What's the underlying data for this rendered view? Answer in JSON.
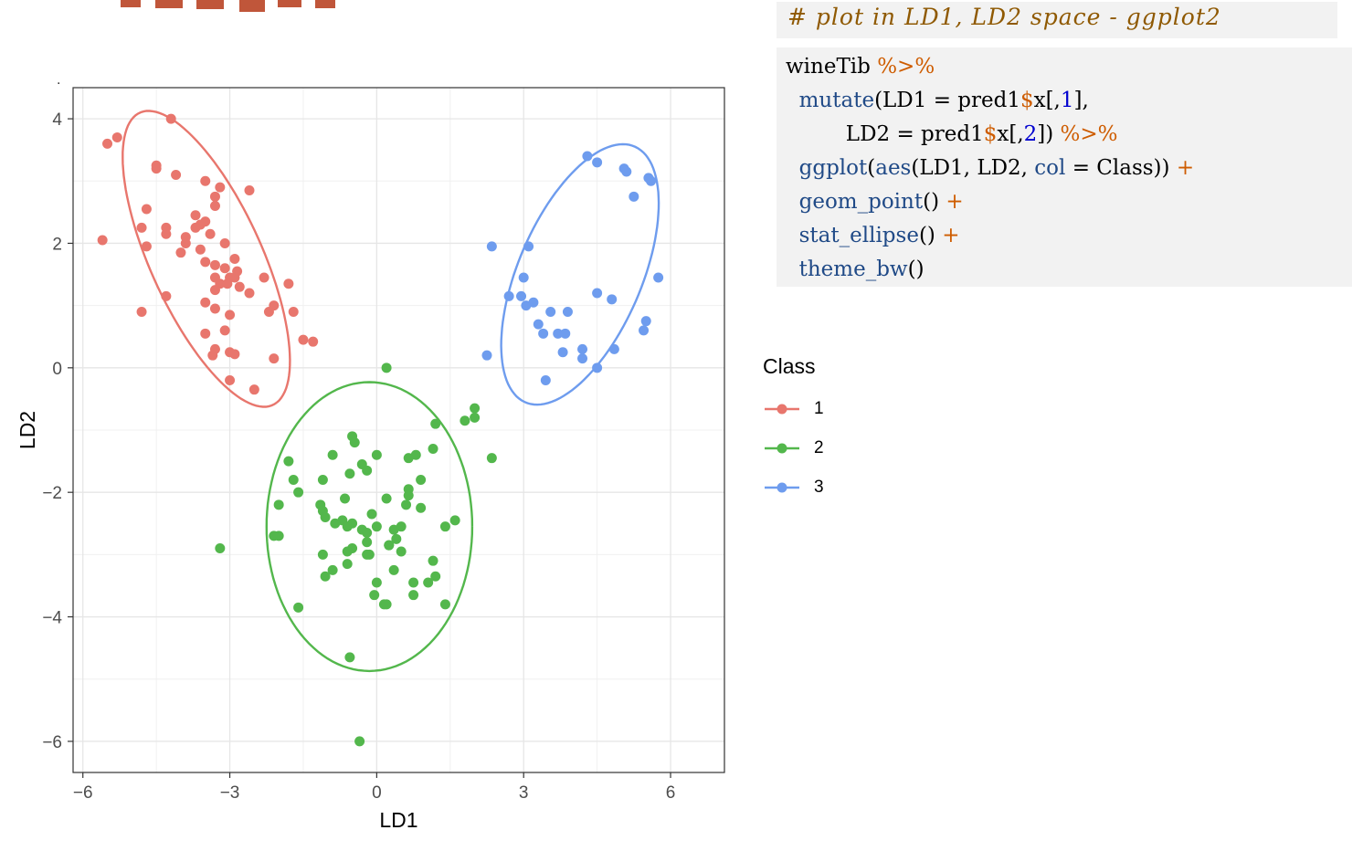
{
  "code": {
    "comment": "# plot in LD1, LD2 space - ggplot2",
    "lines": [
      [
        {
          "t": "wineTib ",
          "c": ""
        },
        {
          "t": "%>%",
          "c": "op"
        }
      ],
      [
        {
          "t": "  ",
          "c": ""
        },
        {
          "t": "mutate",
          "c": "fn"
        },
        {
          "t": "(LD1 = pred1",
          "c": ""
        },
        {
          "t": "$",
          "c": "op"
        },
        {
          "t": "x[,",
          "c": ""
        },
        {
          "t": "1",
          "c": "num"
        },
        {
          "t": "],",
          "c": ""
        }
      ],
      [
        {
          "t": "         LD2 = pred1",
          "c": ""
        },
        {
          "t": "$",
          "c": "op"
        },
        {
          "t": "x[,",
          "c": ""
        },
        {
          "t": "2",
          "c": "num"
        },
        {
          "t": "]) ",
          "c": ""
        },
        {
          "t": "%>%",
          "c": "op"
        }
      ],
      [
        {
          "t": "  ",
          "c": ""
        },
        {
          "t": "ggplot",
          "c": "fn"
        },
        {
          "t": "(",
          "c": ""
        },
        {
          "t": "aes",
          "c": "fn"
        },
        {
          "t": "(LD1, LD2, ",
          "c": ""
        },
        {
          "t": "col",
          "c": "fn"
        },
        {
          "t": " = Class)) ",
          "c": ""
        },
        {
          "t": "+",
          "c": "op"
        }
      ],
      [
        {
          "t": "  ",
          "c": ""
        },
        {
          "t": "geom_point",
          "c": "fn"
        },
        {
          "t": "() ",
          "c": ""
        },
        {
          "t": "+",
          "c": "op"
        }
      ],
      [
        {
          "t": "  ",
          "c": ""
        },
        {
          "t": "stat_ellipse",
          "c": "fn"
        },
        {
          "t": "() ",
          "c": ""
        },
        {
          "t": "+",
          "c": "op"
        }
      ],
      [
        {
          "t": "  ",
          "c": ""
        },
        {
          "t": "theme_bw",
          "c": "fn"
        },
        {
          "t": "()",
          "c": ""
        }
      ]
    ]
  },
  "chart_data": {
    "type": "scatter",
    "title": "",
    "xlabel": "LD1",
    "ylabel": "LD2",
    "xlim": [
      -6.2,
      7.1
    ],
    "ylim": [
      -6.5,
      4.5
    ],
    "xticks": [
      -6,
      -3,
      0,
      3,
      6
    ],
    "xtick_labels": [
      "−6",
      "−3",
      "0",
      "3",
      "6"
    ],
    "yticks": [
      -6,
      -4,
      -2,
      0,
      2,
      4
    ],
    "ytick_labels": [
      "−6",
      "−4",
      "−2",
      "0",
      "2",
      "4"
    ],
    "grid": true,
    "legend": {
      "title": "Class",
      "position": "right"
    },
    "series": [
      {
        "name": "1",
        "color": "#E8766D",
        "points": [
          [
            -4.2,
            4.0
          ],
          [
            -5.5,
            3.6
          ],
          [
            -5.3,
            3.7
          ],
          [
            -4.5,
            3.25
          ],
          [
            -4.5,
            3.2
          ],
          [
            -4.1,
            3.1
          ],
          [
            -3.5,
            3.0
          ],
          [
            -3.2,
            2.9
          ],
          [
            -3.3,
            2.75
          ],
          [
            -3.3,
            2.6
          ],
          [
            -2.6,
            2.85
          ],
          [
            -4.7,
            2.55
          ],
          [
            -3.7,
            2.45
          ],
          [
            -3.6,
            2.3
          ],
          [
            -3.5,
            2.35
          ],
          [
            -3.7,
            2.25
          ],
          [
            -4.3,
            2.25
          ],
          [
            -4.8,
            2.25
          ],
          [
            -3.4,
            2.15
          ],
          [
            -3.9,
            2.1
          ],
          [
            -4.3,
            2.15
          ],
          [
            -5.6,
            2.05
          ],
          [
            -3.1,
            2.0
          ],
          [
            -3.9,
            2.0
          ],
          [
            -4.7,
            1.95
          ],
          [
            -3.6,
            1.9
          ],
          [
            -4.0,
            1.85
          ],
          [
            -2.9,
            1.75
          ],
          [
            -3.5,
            1.7
          ],
          [
            -3.3,
            1.65
          ],
          [
            -3.1,
            1.6
          ],
          [
            -2.85,
            1.55
          ],
          [
            -3.0,
            1.45
          ],
          [
            -3.3,
            1.45
          ],
          [
            -2.9,
            1.45
          ],
          [
            -3.05,
            1.35
          ],
          [
            -2.3,
            1.45
          ],
          [
            -3.2,
            1.35
          ],
          [
            -1.8,
            1.35
          ],
          [
            -2.8,
            1.3
          ],
          [
            -3.3,
            1.25
          ],
          [
            -2.6,
            1.2
          ],
          [
            -4.3,
            1.15
          ],
          [
            -2.1,
            1.0
          ],
          [
            -2.2,
            0.9
          ],
          [
            -3.5,
            1.05
          ],
          [
            -3.3,
            0.95
          ],
          [
            -1.7,
            0.9
          ],
          [
            -4.8,
            0.9
          ],
          [
            -3.0,
            0.85
          ],
          [
            -3.1,
            0.6
          ],
          [
            -1.5,
            0.45
          ],
          [
            -3.5,
            0.55
          ],
          [
            -1.3,
            0.42
          ],
          [
            -3.3,
            0.3
          ],
          [
            -3.35,
            0.2
          ],
          [
            -3.0,
            0.25
          ],
          [
            -2.9,
            0.22
          ],
          [
            -2.1,
            0.15
          ],
          [
            -3.0,
            -0.2
          ],
          [
            -2.5,
            -0.35
          ]
        ]
      },
      {
        "name": "2",
        "color": "#53B74C",
        "points": [
          [
            0.2,
            0.0
          ],
          [
            2.0,
            -0.65
          ],
          [
            1.8,
            -0.85
          ],
          [
            2.0,
            -0.8
          ],
          [
            1.2,
            -0.9
          ],
          [
            -0.5,
            -1.1
          ],
          [
            -0.45,
            -1.2
          ],
          [
            1.15,
            -1.3
          ],
          [
            0.0,
            -1.4
          ],
          [
            -0.9,
            -1.4
          ],
          [
            0.8,
            -1.4
          ],
          [
            0.65,
            -1.45
          ],
          [
            2.35,
            -1.45
          ],
          [
            -1.8,
            -1.5
          ],
          [
            -0.3,
            -1.55
          ],
          [
            -0.55,
            -1.7
          ],
          [
            -1.7,
            -1.8
          ],
          [
            -1.1,
            -1.8
          ],
          [
            0.9,
            -1.8
          ],
          [
            -0.2,
            -1.65
          ],
          [
            0.65,
            -1.95
          ],
          [
            -1.6,
            -2.0
          ],
          [
            -0.65,
            -2.1
          ],
          [
            0.2,
            -2.1
          ],
          [
            0.65,
            -2.05
          ],
          [
            -2.0,
            -2.2
          ],
          [
            -1.15,
            -2.2
          ],
          [
            0.6,
            -2.2
          ],
          [
            0.9,
            -2.25
          ],
          [
            -1.1,
            -2.3
          ],
          [
            -0.1,
            -2.35
          ],
          [
            -1.05,
            -2.4
          ],
          [
            1.6,
            -2.45
          ],
          [
            -0.5,
            -2.5
          ],
          [
            -0.7,
            -2.45
          ],
          [
            -0.85,
            -2.5
          ],
          [
            -0.6,
            -2.55
          ],
          [
            1.4,
            -2.55
          ],
          [
            0.0,
            -2.55
          ],
          [
            -0.3,
            -2.6
          ],
          [
            0.35,
            -2.6
          ],
          [
            0.5,
            -2.55
          ],
          [
            -0.2,
            -2.65
          ],
          [
            -2.0,
            -2.7
          ],
          [
            -2.1,
            -2.7
          ],
          [
            0.4,
            -2.75
          ],
          [
            -0.2,
            -2.8
          ],
          [
            0.25,
            -2.85
          ],
          [
            -0.5,
            -2.9
          ],
          [
            0.25,
            -2.85
          ],
          [
            -0.6,
            -2.95
          ],
          [
            0.5,
            -2.95
          ],
          [
            -1.1,
            -3.0
          ],
          [
            -0.15,
            -3.0
          ],
          [
            -0.2,
            -3.0
          ],
          [
            -3.2,
            -2.9
          ],
          [
            -0.6,
            -3.15
          ],
          [
            -0.9,
            -3.25
          ],
          [
            1.15,
            -3.1
          ],
          [
            0.35,
            -3.25
          ],
          [
            -1.05,
            -3.35
          ],
          [
            1.2,
            -3.35
          ],
          [
            1.05,
            -3.45
          ],
          [
            0.0,
            -3.45
          ],
          [
            0.75,
            -3.45
          ],
          [
            0.75,
            -3.65
          ],
          [
            -0.05,
            -3.65
          ],
          [
            0.15,
            -3.8
          ],
          [
            0.2,
            -3.8
          ],
          [
            1.4,
            -3.8
          ],
          [
            -1.6,
            -3.85
          ],
          [
            -0.55,
            -4.65
          ],
          [
            -0.35,
            -6.0
          ]
        ]
      },
      {
        "name": "3",
        "color": "#6E9CEE",
        "points": [
          [
            4.3,
            3.4
          ],
          [
            4.5,
            3.3
          ],
          [
            5.05,
            3.2
          ],
          [
            5.1,
            3.15
          ],
          [
            5.55,
            3.05
          ],
          [
            5.6,
            3.0
          ],
          [
            5.25,
            2.75
          ],
          [
            2.35,
            1.95
          ],
          [
            3.1,
            1.95
          ],
          [
            3.0,
            1.45
          ],
          [
            5.75,
            1.45
          ],
          [
            2.7,
            1.15
          ],
          [
            2.95,
            1.15
          ],
          [
            4.5,
            1.2
          ],
          [
            3.2,
            1.05
          ],
          [
            4.8,
            1.1
          ],
          [
            3.05,
            1.0
          ],
          [
            3.55,
            0.9
          ],
          [
            3.9,
            0.9
          ],
          [
            5.5,
            0.75
          ],
          [
            3.3,
            0.7
          ],
          [
            3.7,
            0.55
          ],
          [
            3.85,
            0.55
          ],
          [
            5.45,
            0.6
          ],
          [
            3.4,
            0.55
          ],
          [
            4.2,
            0.3
          ],
          [
            3.8,
            0.25
          ],
          [
            4.85,
            0.3
          ],
          [
            4.2,
            0.15
          ],
          [
            2.25,
            0.2
          ],
          [
            4.5,
            0.0
          ],
          [
            3.45,
            -0.2
          ]
        ]
      }
    ],
    "ellipses": [
      {
        "class": "1",
        "color": "#E8766D",
        "center": [
          -3.48,
          1.75
        ],
        "semi_major": 2.72,
        "semi_minor": 1.08,
        "rotation_deg": -58
      },
      {
        "class": "2",
        "color": "#53B74C",
        "center": [
          -0.15,
          -2.55
        ],
        "semi_major": 2.1,
        "semi_minor": 2.32,
        "rotation_deg": 0
      },
      {
        "class": "3",
        "color": "#6E9CEE",
        "center": [
          4.15,
          1.5
        ],
        "semi_major": 2.35,
        "semi_minor": 1.2,
        "rotation_deg": 58
      }
    ]
  }
}
